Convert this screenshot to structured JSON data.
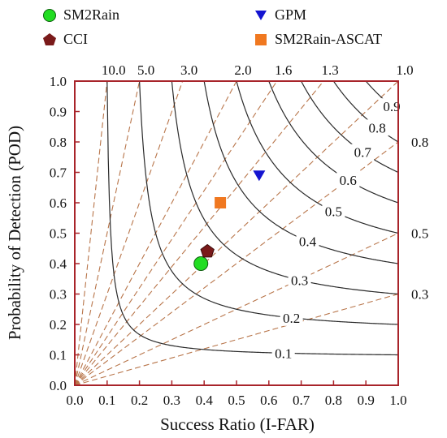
{
  "chart_data": {
    "type": "scatter",
    "subtype": "performance-diagram",
    "xlabel": "Success Ratio (I-FAR)",
    "ylabel": "Probability of Detection (POD)",
    "xlim": [
      0.0,
      1.0
    ],
    "ylim": [
      0.0,
      1.0
    ],
    "x_ticks": [
      "0.0",
      "0.1",
      "0.2",
      "0.3",
      "0.4",
      "0.5",
      "0.6",
      "0.7",
      "0.8",
      "0.9",
      "1.0"
    ],
    "y_ticks": [
      "0.0",
      "0.1",
      "0.2",
      "0.3",
      "0.4",
      "0.5",
      "0.6",
      "0.7",
      "0.8",
      "0.9",
      "1.0"
    ],
    "bias_lines": [
      {
        "value": 10.0,
        "label": "10.0"
      },
      {
        "value": 5.0,
        "label": "5.0"
      },
      {
        "value": 3.0,
        "label": "3.0"
      },
      {
        "value": 2.0,
        "label": "2.0"
      },
      {
        "value": 1.6,
        "label": "1.6"
      },
      {
        "value": 1.3,
        "label": "1.3"
      },
      {
        "value": 1.0,
        "label": "1.0"
      },
      {
        "value": 0.8,
        "label": "0.8"
      },
      {
        "value": 0.5,
        "label": "0.5"
      },
      {
        "value": 0.3,
        "label": "0.3"
      }
    ],
    "csi_contours": [
      {
        "value": 0.1,
        "label": "0.1"
      },
      {
        "value": 0.2,
        "label": "0.2"
      },
      {
        "value": 0.3,
        "label": "0.3"
      },
      {
        "value": 0.4,
        "label": "0.4"
      },
      {
        "value": 0.5,
        "label": "0.5"
      },
      {
        "value": 0.6,
        "label": "0.6"
      },
      {
        "value": 0.7,
        "label": "0.7"
      },
      {
        "value": 0.8,
        "label": "0.8"
      },
      {
        "value": 0.9,
        "label": "0.9"
      }
    ],
    "series": [
      {
        "name": "SM2Rain",
        "marker": "circle",
        "color": "#22dd22",
        "x": 0.39,
        "y": 0.4
      },
      {
        "name": "CCI",
        "marker": "pentagon",
        "color": "#7a1a1a",
        "x": 0.41,
        "y": 0.44
      },
      {
        "name": "GPM",
        "marker": "triangle-down",
        "color": "#1414d0",
        "x": 0.57,
        "y": 0.69
      },
      {
        "name": "SM2Rain-ASCAT",
        "marker": "square",
        "color": "#f07820",
        "x": 0.45,
        "y": 0.6
      }
    ]
  },
  "colors": {
    "frame": "#a8242a",
    "bias_line": "#b8754a",
    "csi_line": "#2a2a2a"
  }
}
